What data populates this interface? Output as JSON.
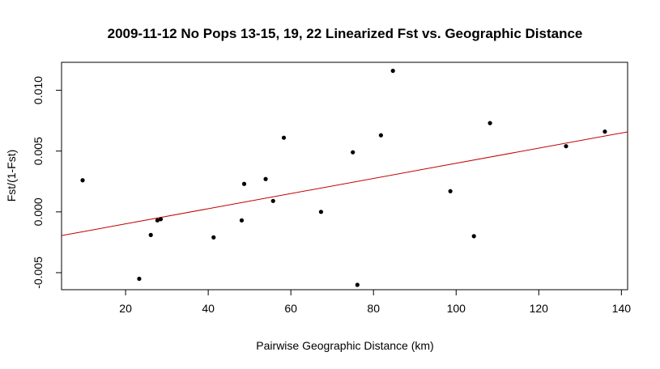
{
  "chart_data": {
    "type": "scatter",
    "title": "2009-11-12 No Pops 13-15, 19, 22 Linearized Fst vs. Geographic Distance",
    "xlabel": "Pairwise Geographic Distance (km)",
    "ylabel": "Fst/(1-Fst)",
    "xlim": [
      4.5,
      141.5
    ],
    "ylim": [
      -0.0064,
      0.0123
    ],
    "x_ticks": [
      20,
      40,
      60,
      80,
      100,
      120,
      140
    ],
    "x_tick_labels": [
      "20",
      "40",
      "60",
      "80",
      "100",
      "120",
      "140"
    ],
    "y_ticks": [
      -0.005,
      0.0,
      0.005,
      0.01
    ],
    "y_tick_labels": [
      "-0.005",
      "0.000",
      "0.005",
      "0.010"
    ],
    "grid": false,
    "legend": "none",
    "point_color": "#000000",
    "line_color": "#c00000",
    "trendline": {
      "type": "linear",
      "x": [
        4.5,
        141.5
      ],
      "y": [
        -0.00195,
        0.00658
      ]
    },
    "points": [
      {
        "x": 9.6,
        "y": 0.0026
      },
      {
        "x": 23.3,
        "y": -0.0055
      },
      {
        "x": 26.1,
        "y": -0.0019
      },
      {
        "x": 27.7,
        "y": -0.0007
      },
      {
        "x": 28.5,
        "y": -0.0006
      },
      {
        "x": 41.3,
        "y": -0.0021
      },
      {
        "x": 48.1,
        "y": -0.0007
      },
      {
        "x": 48.7,
        "y": 0.0023
      },
      {
        "x": 53.9,
        "y": 0.0027
      },
      {
        "x": 55.7,
        "y": 0.0009
      },
      {
        "x": 58.3,
        "y": 0.0061
      },
      {
        "x": 67.3,
        "y": 0.0
      },
      {
        "x": 75.0,
        "y": 0.0049
      },
      {
        "x": 76.1,
        "y": -0.006
      },
      {
        "x": 81.8,
        "y": 0.0063
      },
      {
        "x": 84.7,
        "y": 0.0116
      },
      {
        "x": 98.6,
        "y": 0.0017
      },
      {
        "x": 104.3,
        "y": -0.002
      },
      {
        "x": 108.2,
        "y": 0.0073
      },
      {
        "x": 126.6,
        "y": 0.0054
      },
      {
        "x": 136.0,
        "y": 0.0066
      }
    ]
  }
}
